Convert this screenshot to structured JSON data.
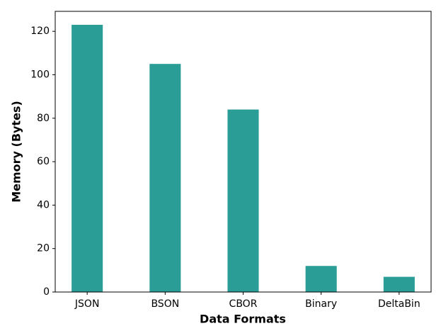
{
  "chart_data": {
    "type": "bar",
    "x_label": "Data Formats",
    "y_label": "Memory (Bytes)",
    "categories": [
      "JSON",
      "BSON",
      "CBOR",
      "Binary",
      "DeltaBin"
    ],
    "values": [
      123,
      105,
      84,
      12,
      7
    ],
    "color": "#2a9d97",
    "ylim": [
      0,
      129.2
    ],
    "yticks": [
      0,
      20,
      40,
      60,
      80,
      100,
      120
    ],
    "grid": false
  }
}
